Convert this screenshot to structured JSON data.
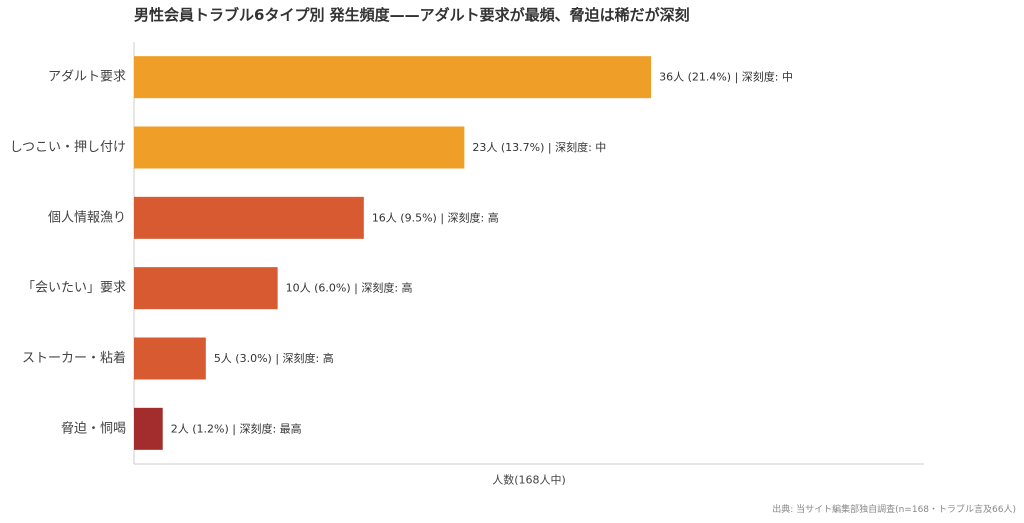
{
  "chart_data": {
    "type": "bar",
    "orientation": "horizontal",
    "title": "男性会員トラブル6タイプ別 発生頻度——アダルト要求が最頻、脅迫は稀だが深刻",
    "xlabel": "人数(168人中)",
    "ylabel": "",
    "xlim": [
      0,
      55
    ],
    "grid": false,
    "legend": "none",
    "categories": [
      "アダルト要求",
      "しつこい・押し付け",
      "個人情報漁り",
      "「会いたい」要求",
      "ストーカー・粘着",
      "脅迫・恫喝"
    ],
    "values": [
      36,
      23,
      16,
      10,
      5,
      2
    ],
    "data_labels": [
      "36人 (21.4%) | 深刻度: 中",
      "23人 (13.7%) | 深刻度: 中",
      "16人 (9.5%) | 深刻度: 高",
      "10人 (6.0%) | 深刻度: 高",
      "5人 (3.0%) | 深刻度: 高",
      "2人 (1.2%) | 深刻度: 最高"
    ],
    "colors": [
      "#EF9F27",
      "#EF9F27",
      "#D85A30",
      "#D85A30",
      "#D85A30",
      "#A32D2D"
    ],
    "source": "出典: 当サイト編集部独自調査(n=168・トラブル言及66人)"
  }
}
